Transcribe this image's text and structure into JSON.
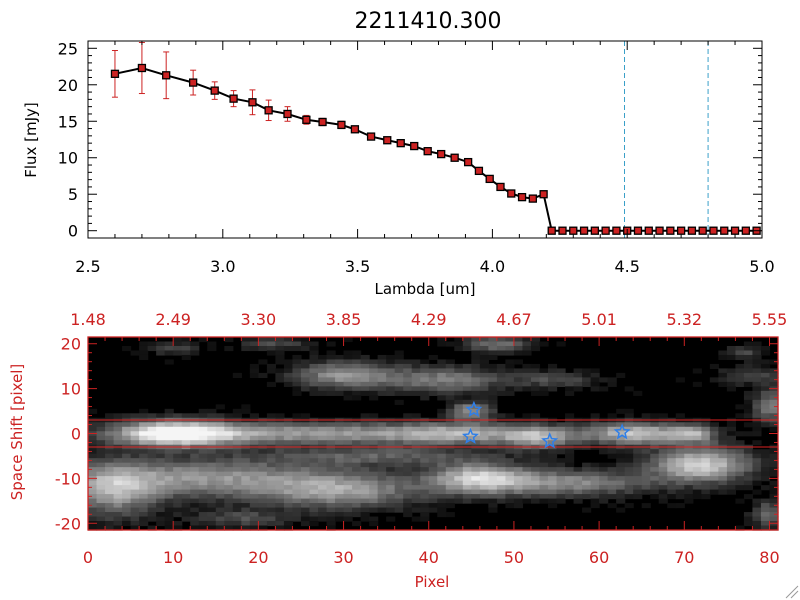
{
  "chart_data": [
    {
      "type": "line",
      "title": "2211410.300",
      "xlabel": "Lambda [um]",
      "ylabel": "Flux [mJy]",
      "xlim": [
        2.5,
        5.0
      ],
      "ylim": [
        -1,
        26
      ],
      "x_ticks": [
        2.5,
        3.0,
        3.5,
        4.0,
        4.5,
        5.0
      ],
      "x_tick_labels": [
        "2.5",
        "3.0",
        "3.5",
        "4.0",
        "4.5",
        "5.0"
      ],
      "y_ticks": [
        0,
        5,
        10,
        15,
        20,
        25
      ],
      "y_tick_labels": [
        "0",
        "5",
        "10",
        "15",
        "20",
        "25"
      ],
      "vlines": [
        4.49,
        4.8
      ],
      "series": [
        {
          "name": "flux",
          "x": [
            2.6,
            2.7,
            2.79,
            2.89,
            2.97,
            3.04,
            3.11,
            3.17,
            3.24,
            3.31,
            3.37,
            3.44,
            3.49,
            3.55,
            3.61,
            3.66,
            3.71,
            3.76,
            3.81,
            3.86,
            3.91,
            3.95,
            3.99,
            4.03,
            4.07,
            4.11,
            4.15,
            4.19,
            4.22,
            4.26,
            4.3,
            4.34,
            4.38,
            4.42,
            4.46,
            4.5,
            4.54,
            4.58,
            4.62,
            4.66,
            4.7,
            4.74,
            4.78,
            4.82,
            4.86,
            4.9,
            4.94,
            4.98
          ],
          "y": [
            21.5,
            22.3,
            21.3,
            20.3,
            19.2,
            18.1,
            17.6,
            16.5,
            16.0,
            15.2,
            14.9,
            14.5,
            13.9,
            12.9,
            12.4,
            12.0,
            11.6,
            10.9,
            10.5,
            10.0,
            9.4,
            8.2,
            7.1,
            6.0,
            5.1,
            4.6,
            4.4,
            5.0,
            0,
            0,
            0,
            0,
            0,
            0,
            0,
            0,
            0,
            0,
            0,
            0,
            0,
            0,
            0,
            0,
            0,
            0,
            0,
            0
          ],
          "err": [
            3.2,
            3.5,
            3.2,
            1.7,
            1.2,
            1.1,
            1.7,
            1.4,
            1.0,
            0.6,
            0.5,
            0.5,
            0.4,
            0.4,
            0.3,
            0.3,
            0.3,
            0.3,
            0.3,
            0.3,
            0.3,
            0.3,
            0.3,
            0.3,
            0.3,
            0.3,
            0.3,
            0.3,
            0,
            0,
            0,
            0,
            0,
            0,
            0,
            0,
            0,
            0,
            0,
            0,
            0,
            0,
            0,
            0,
            0,
            0,
            0,
            0
          ]
        }
      ]
    },
    {
      "type": "heatmap",
      "xlabel": "Pixel",
      "ylabel": "Space Shift [pixel]",
      "xlim": [
        0,
        81
      ],
      "ylim": [
        -21.5,
        21.5
      ],
      "x_ticks": [
        0,
        10,
        20,
        30,
        40,
        50,
        60,
        70,
        80
      ],
      "x_tick_labels": [
        "0",
        "10",
        "20",
        "30",
        "40",
        "50",
        "60",
        "70",
        "80"
      ],
      "y_ticks": [
        -20,
        -10,
        0,
        10,
        20
      ],
      "y_tick_labels": [
        "-20",
        "-10",
        "0",
        "10",
        "20"
      ],
      "top_axis_labels": [
        "1.48",
        "2.49",
        "3.30",
        "3.85",
        "4.29",
        "4.67",
        "5.01",
        "5.32",
        "5.55"
      ],
      "hlines": [
        3,
        -3
      ],
      "stars": [
        {
          "x": 45.3,
          "y": 5.3
        },
        {
          "x": 44.9,
          "y": -0.7
        },
        {
          "x": 54.2,
          "y": -1.7
        },
        {
          "x": 62.7,
          "y": 0.3
        }
      ],
      "blobs": [
        {
          "x": 10,
          "y": 0,
          "rx": 7,
          "ry": 3,
          "v": 0.95
        },
        {
          "x": 25,
          "y": 0,
          "rx": 18,
          "ry": 2.5,
          "v": 0.62
        },
        {
          "x": 44,
          "y": 0,
          "rx": 9,
          "ry": 2.5,
          "v": 0.55
        },
        {
          "x": 53,
          "y": -1,
          "rx": 4,
          "ry": 2.5,
          "v": 0.58
        },
        {
          "x": 64,
          "y": 0,
          "rx": 6,
          "ry": 2.5,
          "v": 0.78
        },
        {
          "x": 71,
          "y": 0,
          "rx": 3,
          "ry": 2,
          "v": 0.55
        },
        {
          "x": 45,
          "y": 5,
          "rx": 2.5,
          "ry": 2,
          "v": 0.6
        },
        {
          "x": 14,
          "y": -10,
          "rx": 16,
          "ry": 4.5,
          "v": 0.6
        },
        {
          "x": 3,
          "y": -13,
          "rx": 5,
          "ry": 6,
          "v": 0.55
        },
        {
          "x": 30,
          "y": -13,
          "rx": 9,
          "ry": 4,
          "v": 0.55
        },
        {
          "x": 46,
          "y": -10,
          "rx": 6,
          "ry": 3.5,
          "v": 0.8
        },
        {
          "x": 57,
          "y": -11,
          "rx": 9,
          "ry": 3,
          "v": 0.55
        },
        {
          "x": 72,
          "y": -7,
          "rx": 6,
          "ry": 4,
          "v": 0.85
        },
        {
          "x": 34,
          "y": -5,
          "rx": 12,
          "ry": 2,
          "v": 0.35
        },
        {
          "x": 30,
          "y": 13,
          "rx": 6,
          "ry": 3,
          "v": 0.6
        },
        {
          "x": 42,
          "y": 12,
          "rx": 7,
          "ry": 3,
          "v": 0.5
        },
        {
          "x": 55,
          "y": 12,
          "rx": 5,
          "ry": 2,
          "v": 0.3
        },
        {
          "x": 48,
          "y": 20,
          "rx": 4,
          "ry": 2,
          "v": 0.45
        },
        {
          "x": 22,
          "y": 20,
          "rx": 4,
          "ry": 1.5,
          "v": 0.3
        },
        {
          "x": 10,
          "y": 19,
          "rx": 3,
          "ry": 1.5,
          "v": 0.28
        },
        {
          "x": 80,
          "y": 6,
          "rx": 2,
          "ry": 4,
          "v": 0.5
        },
        {
          "x": 80,
          "y": -18,
          "rx": 2,
          "ry": 3,
          "v": 0.45
        },
        {
          "x": 78,
          "y": 13,
          "rx": 4,
          "ry": 2,
          "v": 0.3
        },
        {
          "x": 77,
          "y": 18,
          "rx": 2,
          "ry": 1.5,
          "v": 0.3
        },
        {
          "x": 18,
          "y": -19,
          "rx": 6,
          "ry": 2,
          "v": 0.3
        }
      ]
    }
  ],
  "colors": {
    "axis_top": "#000000",
    "axis_bottom": "#cc2222",
    "marker_fill": "#cc2222",
    "vline": "#3aa0c8",
    "star": "#2f7fe8",
    "hline": "#dd2222",
    "dashed_zero": "#dd2222"
  }
}
